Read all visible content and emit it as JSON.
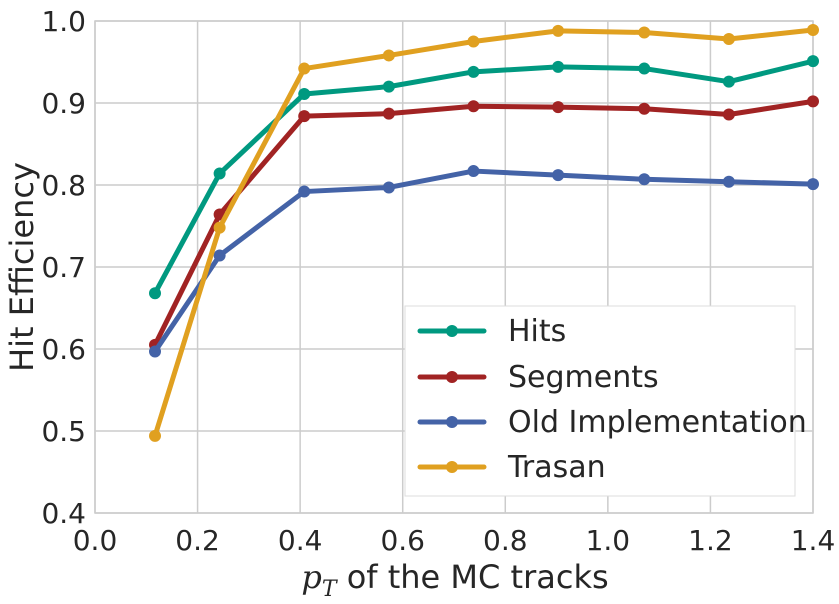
{
  "chart_data": {
    "type": "line",
    "xlabel_pre": "p",
    "xlabel_sub": "T",
    "xlabel_post": " of the MC tracks",
    "ylabel": "Hit Efficiency",
    "xlim": [
      0.0,
      1.4
    ],
    "ylim": [
      0.4,
      1.0
    ],
    "xticks": [
      "0.0",
      "0.2",
      "0.4",
      "0.6",
      "0.8",
      "1.0",
      "1.2",
      "1.4"
    ],
    "yticks": [
      "0.4",
      "0.5",
      "0.6",
      "0.7",
      "0.8",
      "0.9",
      "1.0"
    ],
    "grid": true,
    "legend_position": "lower-right",
    "x": [
      0.117,
      0.243,
      0.408,
      0.573,
      0.738,
      0.903,
      1.071,
      1.236,
      1.4
    ],
    "series": [
      {
        "name": "Hits",
        "color": "#009980",
        "values": [
          0.668,
          0.814,
          0.911,
          0.92,
          0.938,
          0.944,
          0.942,
          0.926,
          0.951
        ]
      },
      {
        "name": "Segments",
        "color": "#a12323",
        "values": [
          0.605,
          0.764,
          0.884,
          0.887,
          0.896,
          0.895,
          0.893,
          0.886,
          0.902
        ]
      },
      {
        "name": "Old Implementation",
        "color": "#4463a7",
        "values": [
          0.597,
          0.714,
          0.792,
          0.797,
          0.817,
          0.812,
          0.807,
          0.804,
          0.801
        ]
      },
      {
        "name": "Trasan",
        "color": "#e0a020",
        "values": [
          0.494,
          0.748,
          0.942,
          0.958,
          0.975,
          0.988,
          0.986,
          0.978,
          0.989
        ]
      }
    ]
  }
}
